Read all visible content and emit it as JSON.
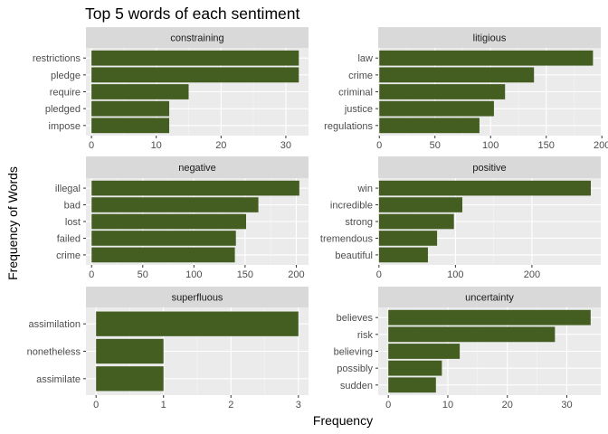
{
  "chart_data": {
    "type": "bar",
    "title": "Top 5 words of each sentiment",
    "xlabel": "Frequency",
    "ylabel": "Frequency of Words",
    "orientation": "horizontal",
    "bar_color": "#445E22",
    "panel_bg": "#EBEBEB",
    "strip_bg": "#D9D9D9",
    "grid": true,
    "panels": [
      {
        "name": "constraining",
        "xlim": [
          -0.85,
          33.5
        ],
        "xticks": [
          0,
          10,
          20,
          30
        ],
        "categories": [
          "restrictions",
          "pledge",
          "require",
          "pledged",
          "impose"
        ],
        "values": [
          32,
          32,
          15,
          12,
          12
        ]
      },
      {
        "name": "litigious",
        "xlim": [
          -1,
          199
        ],
        "xticks": [
          0,
          50,
          100,
          150,
          200
        ],
        "categories": [
          "law",
          "crime",
          "criminal",
          "justice",
          "regulations"
        ],
        "values": [
          192,
          139,
          113,
          103,
          90
        ]
      },
      {
        "name": "negative",
        "xlim": [
          -5.5,
          212
        ],
        "xticks": [
          0,
          50,
          100,
          150,
          200
        ],
        "categories": [
          "illegal",
          "bad",
          "lost",
          "failed",
          "crime"
        ],
        "values": [
          203,
          163,
          151,
          141,
          140
        ]
      },
      {
        "name": "positive",
        "xlim": [
          -1,
          290
        ],
        "xticks": [
          0,
          100,
          200
        ],
        "categories": [
          "win",
          "incredible",
          "strong",
          "tremendous",
          "beautiful"
        ],
        "values": [
          277,
          109,
          98,
          76,
          64
        ]
      },
      {
        "name": "superfluous",
        "xlim": [
          -0.15,
          3.15
        ],
        "xticks": [
          0,
          1,
          2,
          3
        ],
        "categories": [
          "assimilation",
          "nonetheless",
          "assimilate"
        ],
        "values": [
          3,
          1,
          1
        ]
      },
      {
        "name": "uncertainty",
        "xlim": [
          -1.7,
          35.7
        ],
        "xticks": [
          0,
          10,
          20,
          30
        ],
        "categories": [
          "believes",
          "risk",
          "believing",
          "possibly",
          "sudden"
        ],
        "values": [
          34,
          28,
          12,
          9,
          8
        ]
      }
    ]
  }
}
